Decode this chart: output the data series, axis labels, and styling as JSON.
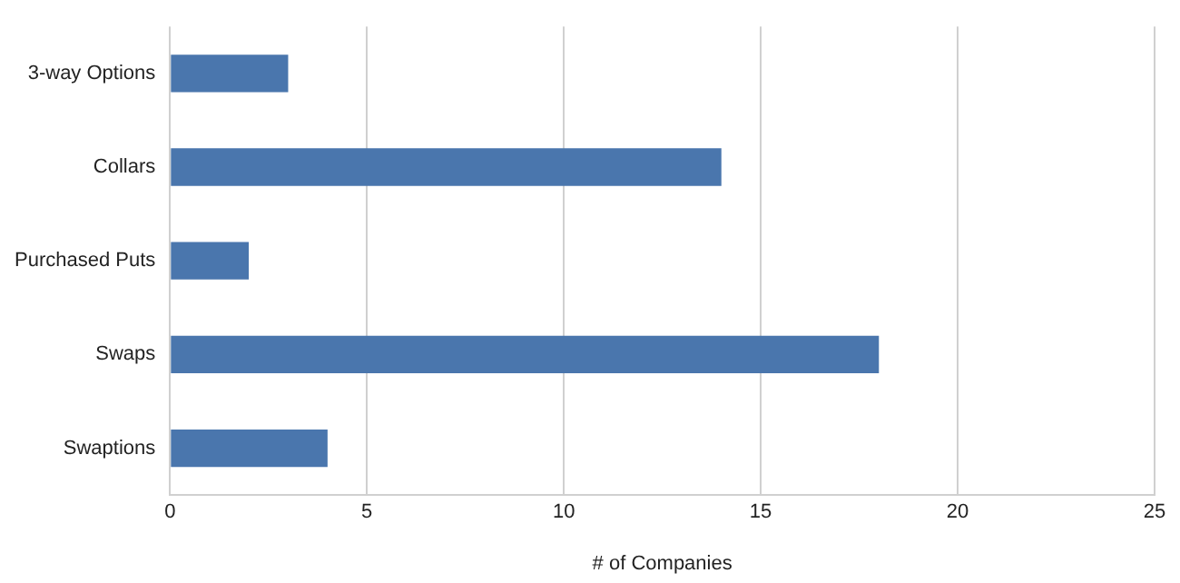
{
  "chart_data": {
    "type": "bar",
    "orientation": "horizontal",
    "xlabel": "# of Companies",
    "categories": [
      "3-way Options",
      "Collars",
      "Purchased Puts",
      "Swaps",
      "Swaptions"
    ],
    "values": [
      3,
      14,
      2,
      18,
      4
    ],
    "color": "#4a76ad",
    "xlim": [
      0,
      25
    ],
    "xticks": [
      0,
      5,
      10,
      15,
      20,
      25
    ],
    "grid": "x",
    "legend": false
  }
}
